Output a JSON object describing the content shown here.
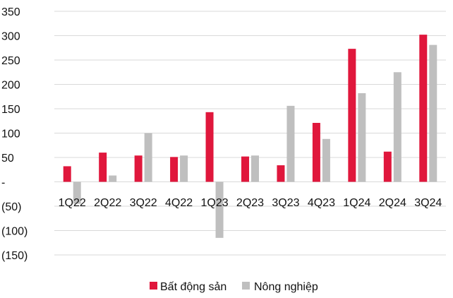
{
  "chart_data": {
    "type": "bar",
    "categories": [
      "1Q22",
      "2Q22",
      "3Q22",
      "4Q22",
      "1Q23",
      "2Q23",
      "3Q23",
      "4Q23",
      "1Q24",
      "2Q24",
      "3Q24"
    ],
    "series": [
      {
        "name": "Bất động sản",
        "color": "#e0173c",
        "values": [
          32,
          60,
          54,
          51,
          143,
          52,
          34,
          121,
          273,
          62,
          302
        ]
      },
      {
        "name": "Nông nghiệp",
        "color": "#bfbfbf",
        "values": [
          -45,
          13,
          100,
          54,
          -115,
          54,
          156,
          88,
          182,
          225,
          281
        ]
      }
    ],
    "y_ticks": [
      {
        "value": 350,
        "label": "350"
      },
      {
        "value": 300,
        "label": "300"
      },
      {
        "value": 250,
        "label": "250"
      },
      {
        "value": 200,
        "label": "200"
      },
      {
        "value": 150,
        "label": "150"
      },
      {
        "value": 100,
        "label": "100"
      },
      {
        "value": 50,
        "label": "50"
      },
      {
        "value": 0,
        "label": "-"
      },
      {
        "value": -50,
        "label": "(50)"
      },
      {
        "value": -100,
        "label": "(100)"
      },
      {
        "value": -150,
        "label": "(150)"
      }
    ],
    "ylim": [
      -150,
      350
    ],
    "grid": true,
    "legend": "bottom"
  }
}
